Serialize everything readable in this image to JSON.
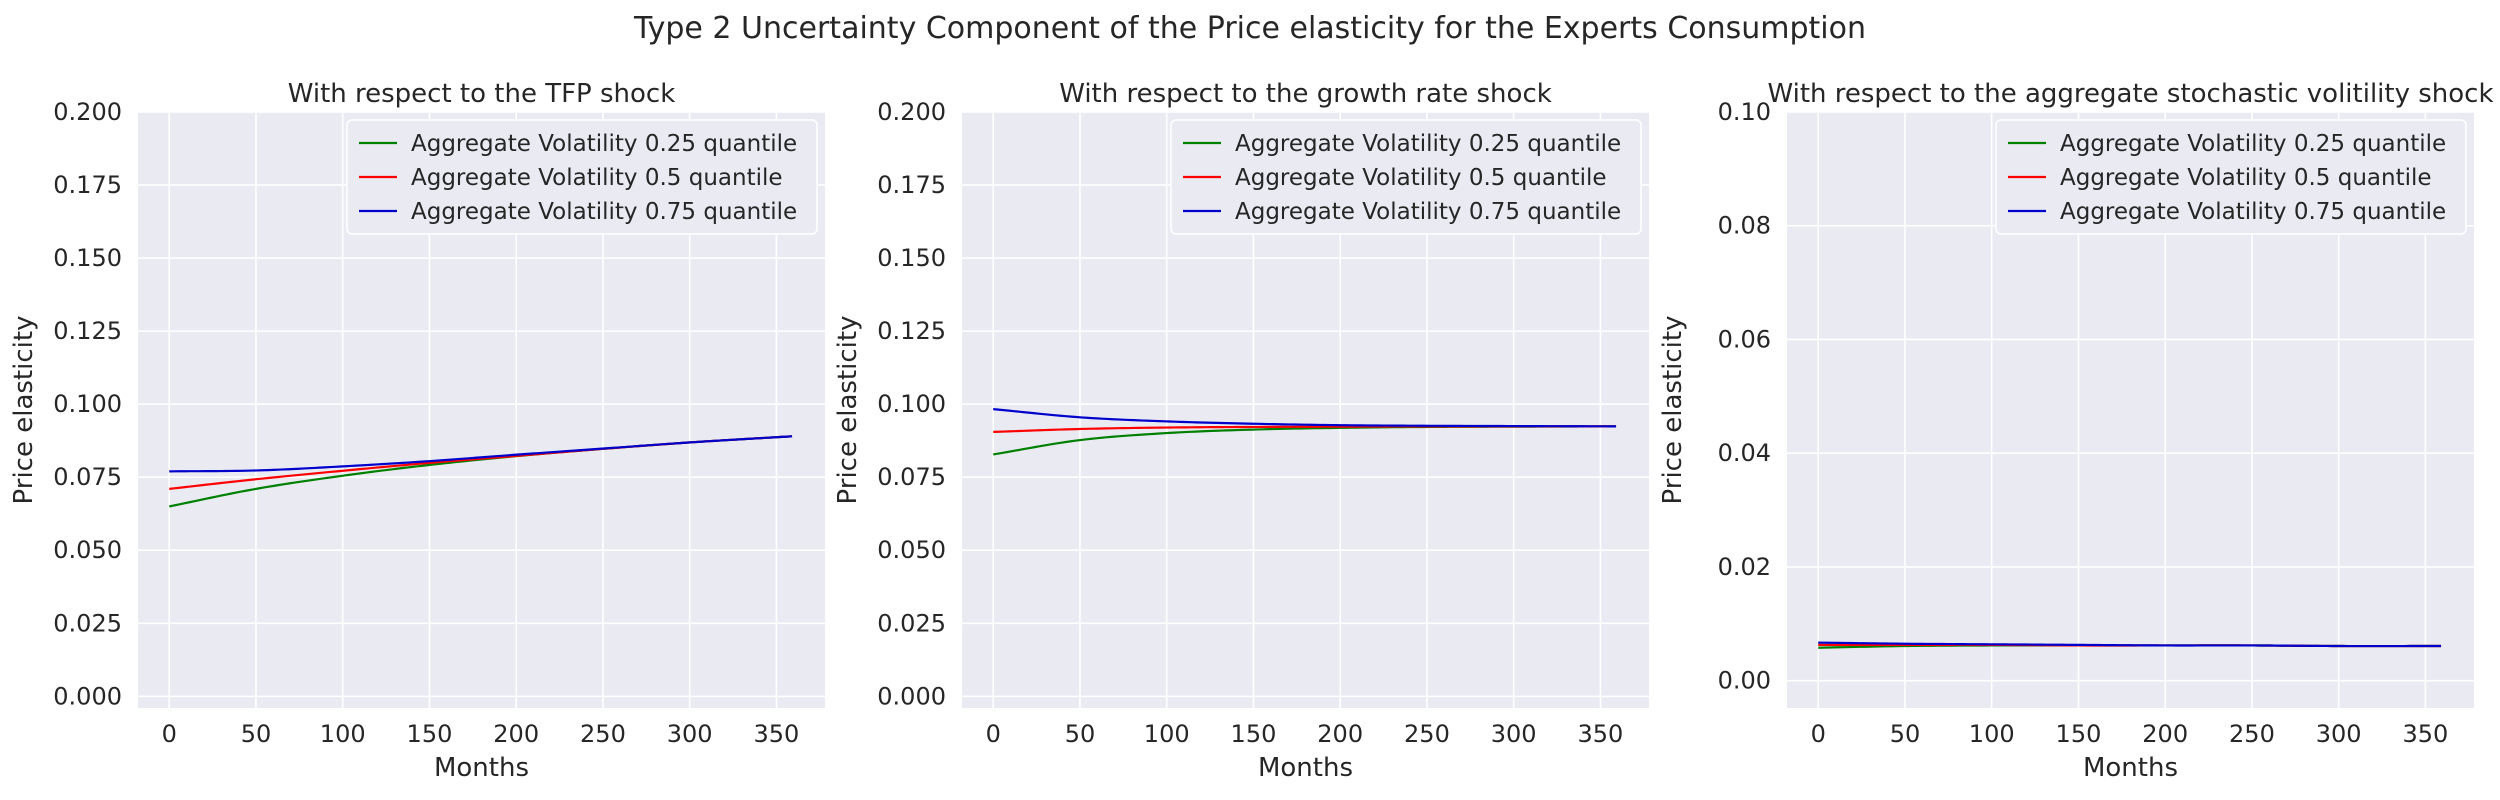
{
  "figure": {
    "suptitle": "Type 2 Uncertainty Component of the Price elasticity for the Experts Consumption"
  },
  "chart_data": [
    {
      "type": "line",
      "title": "With respect to the TFP shock",
      "xlabel": "Months",
      "ylabel": "Price elasticity",
      "xlim": [
        -18,
        378
      ],
      "ylim": [
        -0.004,
        0.2
      ],
      "xticks": [
        0,
        50,
        100,
        150,
        200,
        250,
        300,
        350
      ],
      "yticks": [
        0.0,
        0.025,
        0.05,
        0.075,
        0.1,
        0.125,
        0.15,
        0.175,
        0.2
      ],
      "ytick_labels": [
        "0.000",
        "0.025",
        "0.050",
        "0.075",
        "0.100",
        "0.125",
        "0.150",
        "0.175",
        "0.200"
      ],
      "xtick_labels": [
        "0",
        "50",
        "100",
        "150",
        "200",
        "250",
        "300",
        "350"
      ],
      "grid": true,
      "legend": "top-right",
      "x": [
        0,
        50,
        100,
        150,
        200,
        250,
        300,
        359
      ],
      "series": [
        {
          "name": "Aggregate Volatility 0.25 quantile",
          "color": "#008000",
          "values": [
            0.065,
            0.071,
            0.0755,
            0.0792,
            0.0822,
            0.0847,
            0.0869,
            0.089
          ]
        },
        {
          "name": "Aggregate Volatility 0.5 quantile",
          "color": "#ff0000",
          "values": [
            0.071,
            0.0743,
            0.0772,
            0.0799,
            0.0823,
            0.0847,
            0.0869,
            0.089
          ]
        },
        {
          "name": "Aggregate Volatility 0.75 quantile",
          "color": "#0000cd",
          "values": [
            0.077,
            0.0773,
            0.0787,
            0.0805,
            0.0827,
            0.0848,
            0.0869,
            0.089
          ]
        }
      ]
    },
    {
      "type": "line",
      "title": "With respect to the growth rate shock",
      "xlabel": "Months",
      "ylabel": "Price elasticity",
      "xlim": [
        -18,
        378
      ],
      "ylim": [
        -0.004,
        0.2
      ],
      "xticks": [
        0,
        50,
        100,
        150,
        200,
        250,
        300,
        350
      ],
      "yticks": [
        0.0,
        0.025,
        0.05,
        0.075,
        0.1,
        0.125,
        0.15,
        0.175,
        0.2
      ],
      "ytick_labels": [
        "0.000",
        "0.025",
        "0.050",
        "0.075",
        "0.100",
        "0.125",
        "0.150",
        "0.175",
        "0.200"
      ],
      "xtick_labels": [
        "0",
        "50",
        "100",
        "150",
        "200",
        "250",
        "300",
        "350"
      ],
      "grid": true,
      "legend": "top-right",
      "x": [
        0,
        50,
        100,
        150,
        200,
        250,
        300,
        359
      ],
      "series": [
        {
          "name": "Aggregate Volatility 0.25 quantile",
          "color": "#008000",
          "values": [
            0.0828,
            0.0877,
            0.0901,
            0.0913,
            0.0919,
            0.0922,
            0.0923,
            0.0924
          ]
        },
        {
          "name": "Aggregate Volatility 0.5 quantile",
          "color": "#ff0000",
          "values": [
            0.0905,
            0.0915,
            0.092,
            0.0922,
            0.0923,
            0.0924,
            0.0924,
            0.0924
          ]
        },
        {
          "name": "Aggregate Volatility 0.75 quantile",
          "color": "#0000cd",
          "values": [
            0.0983,
            0.0955,
            0.0941,
            0.0933,
            0.0928,
            0.0926,
            0.0925,
            0.0924
          ]
        }
      ]
    },
    {
      "type": "line",
      "title": "With respect to the aggregate stochastic volitility shock",
      "xlabel": "Months",
      "ylabel": "Price elasticity",
      "xlim": [
        -18,
        378
      ],
      "ylim": [
        -0.0048,
        0.1
      ],
      "xticks": [
        0,
        50,
        100,
        150,
        200,
        250,
        300,
        350
      ],
      "yticks": [
        0.0,
        0.02,
        0.04,
        0.06,
        0.08,
        0.1
      ],
      "ytick_labels": [
        "0.00",
        "0.02",
        "0.04",
        "0.06",
        "0.08",
        "0.10"
      ],
      "xtick_labels": [
        "0",
        "50",
        "100",
        "150",
        "200",
        "250",
        "300",
        "350"
      ],
      "grid": true,
      "legend": "top-right",
      "x": [
        0,
        50,
        100,
        150,
        200,
        250,
        300,
        359
      ],
      "series": [
        {
          "name": "Aggregate Volatility 0.25 quantile",
          "color": "#008000",
          "values": [
            0.0058,
            0.0061,
            0.0062,
            0.0062,
            0.0062,
            0.0062,
            0.0061,
            0.0061
          ]
        },
        {
          "name": "Aggregate Volatility 0.5 quantile",
          "color": "#ff0000",
          "values": [
            0.0063,
            0.0063,
            0.0063,
            0.0062,
            0.0062,
            0.0062,
            0.0061,
            0.0061
          ]
        },
        {
          "name": "Aggregate Volatility 0.75 quantile",
          "color": "#0000cd",
          "values": [
            0.0067,
            0.0065,
            0.0064,
            0.0063,
            0.0062,
            0.0062,
            0.0061,
            0.0061
          ]
        }
      ]
    }
  ]
}
